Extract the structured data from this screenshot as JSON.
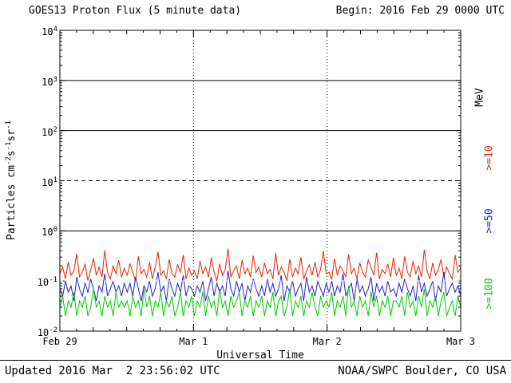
{
  "header": {
    "title": "GOES13 Proton Flux (5 minute data)",
    "begin": "Begin: 2016 Feb 29 0000 UTC"
  },
  "footer": {
    "updated": "Updated 2016 Mar  2 23:56:02 UTC",
    "source": "NOAA/SWPC Boulder, CO USA"
  },
  "right_labels": {
    "unit": "MeV",
    "series": [
      {
        "label": ">=10",
        "color": "#ED2200"
      },
      {
        "label": ">=50",
        "color": "#2222CC"
      },
      {
        "label": ">=100",
        "color": "#00CC00"
      }
    ]
  },
  "chart_data": {
    "type": "line",
    "title": "GOES13 Proton Flux (5 minute data)",
    "xlabel": "Universal Time",
    "ylabel": "Particles cm-2s-1sr-1",
    "ylabel_parts": [
      {
        "text": "Particles cm"
      },
      {
        "sup": "-2"
      },
      {
        "text": "s"
      },
      {
        "sup": "-1"
      },
      {
        "text": "sr"
      },
      {
        "sup": "-1"
      }
    ],
    "y_scale": "log",
    "ylim": [
      0.01,
      10000
    ],
    "y_ticks": [
      {
        "base": "10",
        "exp": "4"
      },
      {
        "base": "10",
        "exp": "3"
      },
      {
        "base": "10",
        "exp": "2"
      },
      {
        "base": "10",
        "exp": "1"
      },
      {
        "base": "10",
        "exp": "0"
      },
      {
        "base": "10",
        "exp": "-1"
      },
      {
        "base": "10",
        "exp": "-2"
      }
    ],
    "x_start": "2016 Feb 29 0000 UTC",
    "x_days": 3,
    "x_tick_labels": [
      "Feb 29",
      "Mar 1",
      "Mar 2",
      "Mar 3"
    ],
    "sample_interval_minutes": 30,
    "gridlines": {
      "h_solid": [
        1000,
        100,
        1
      ],
      "h_dashed": [
        10
      ],
      "h_white_dashed": [
        0.1
      ],
      "v_dotted_at_day_boundaries": true
    },
    "series": [
      {
        "name": ">=10 MeV",
        "color": "#ED2200",
        "values": [
          0.14,
          0.19,
          0.11,
          0.24,
          0.13,
          0.16,
          0.35,
          0.12,
          0.15,
          0.22,
          0.1,
          0.17,
          0.28,
          0.13,
          0.19,
          0.12,
          0.41,
          0.15,
          0.11,
          0.2,
          0.14,
          0.26,
          0.12,
          0.18,
          0.13,
          0.22,
          0.15,
          0.1,
          0.31,
          0.14,
          0.17,
          0.12,
          0.24,
          0.11,
          0.19,
          0.38,
          0.13,
          0.16,
          0.11,
          0.27,
          0.14,
          0.12,
          0.21,
          0.15,
          0.33,
          0.11,
          0.18,
          0.13,
          0.16,
          0.11,
          0.25,
          0.14,
          0.19,
          0.12,
          0.29,
          0.15,
          0.1,
          0.22,
          0.13,
          0.17,
          0.44,
          0.12,
          0.16,
          0.2,
          0.11,
          0.26,
          0.14,
          0.18,
          0.12,
          0.32,
          0.15,
          0.19,
          0.12,
          0.23,
          0.14,
          0.17,
          0.11,
          0.36,
          0.13,
          0.19,
          0.15,
          0.1,
          0.27,
          0.12,
          0.18,
          0.14,
          0.3,
          0.11,
          0.16,
          0.21,
          0.13,
          0.24,
          0.12,
          0.17,
          0.4,
          0.14,
          0.15,
          0.11,
          0.28,
          0.13,
          0.2,
          0.16,
          0.12,
          0.34,
          0.14,
          0.18,
          0.11,
          0.23,
          0.15,
          0.12,
          0.26,
          0.19,
          0.13,
          0.37,
          0.11,
          0.17,
          0.14,
          0.22,
          0.12,
          0.29,
          0.13,
          0.18,
          0.11,
          0.31,
          0.15,
          0.12,
          0.25,
          0.14,
          0.2,
          0.12,
          0.42,
          0.16,
          0.11,
          0.23,
          0.13,
          0.17,
          0.27,
          0.12,
          0.19,
          0.14,
          0.11,
          0.33,
          0.15,
          0.18
        ]
      },
      {
        "name": ">=50 MeV",
        "color": "#2222CC",
        "values": [
          0.07,
          0.05,
          0.1,
          0.06,
          0.08,
          0.04,
          0.12,
          0.07,
          0.05,
          0.09,
          0.06,
          0.11,
          0.07,
          0.04,
          0.08,
          0.06,
          0.14,
          0.05,
          0.07,
          0.1,
          0.06,
          0.08,
          0.05,
          0.09,
          0.06,
          0.09,
          0.05,
          0.12,
          0.07,
          0.04,
          0.08,
          0.06,
          0.1,
          0.05,
          0.07,
          0.15,
          0.06,
          0.08,
          0.04,
          0.11,
          0.07,
          0.05,
          0.09,
          0.06,
          0.13,
          0.05,
          0.08,
          0.07,
          0.05,
          0.08,
          0.06,
          0.1,
          0.04,
          0.07,
          0.12,
          0.05,
          0.09,
          0.06,
          0.08,
          0.05,
          0.16,
          0.07,
          0.05,
          0.1,
          0.06,
          0.09,
          0.04,
          0.08,
          0.06,
          0.11,
          0.07,
          0.05,
          0.08,
          0.05,
          0.11,
          0.06,
          0.09,
          0.05,
          0.07,
          0.13,
          0.04,
          0.08,
          0.06,
          0.1,
          0.05,
          0.07,
          0.09,
          0.04,
          0.12,
          0.06,
          0.08,
          0.05,
          0.1,
          0.07,
          0.05,
          0.09,
          0.06,
          0.1,
          0.05,
          0.08,
          0.06,
          0.14,
          0.05,
          0.07,
          0.09,
          0.04,
          0.11,
          0.06,
          0.08,
          0.05,
          0.07,
          0.12,
          0.04,
          0.09,
          0.06,
          0.08,
          0.05,
          0.1,
          0.06,
          0.07,
          0.05,
          0.09,
          0.06,
          0.11,
          0.07,
          0.05,
          0.08,
          0.04,
          0.13,
          0.06,
          0.09,
          0.05,
          0.07,
          0.1,
          0.04,
          0.08,
          0.06,
          0.15,
          0.05,
          0.07,
          0.09,
          0.06,
          0.08,
          0.05
        ]
      },
      {
        "name": ">=100 MeV",
        "color": "#00CC00",
        "values": [
          0.03,
          0.05,
          0.02,
          0.04,
          0.03,
          0.06,
          0.02,
          0.04,
          0.03,
          0.05,
          0.02,
          0.03,
          0.07,
          0.03,
          0.04,
          0.02,
          0.05,
          0.03,
          0.04,
          0.02,
          0.06,
          0.03,
          0.04,
          0.03,
          0.04,
          0.02,
          0.05,
          0.03,
          0.04,
          0.02,
          0.07,
          0.03,
          0.05,
          0.02,
          0.04,
          0.03,
          0.06,
          0.02,
          0.04,
          0.03,
          0.05,
          0.02,
          0.03,
          0.06,
          0.02,
          0.04,
          0.03,
          0.05,
          0.02,
          0.04,
          0.03,
          0.06,
          0.02,
          0.05,
          0.03,
          0.04,
          0.02,
          0.07,
          0.03,
          0.04,
          0.02,
          0.05,
          0.03,
          0.04,
          0.06,
          0.02,
          0.04,
          0.03,
          0.05,
          0.02,
          0.04,
          0.03,
          0.05,
          0.02,
          0.04,
          0.03,
          0.06,
          0.02,
          0.04,
          0.05,
          0.02,
          0.03,
          0.07,
          0.02,
          0.04,
          0.03,
          0.05,
          0.02,
          0.04,
          0.03,
          0.06,
          0.03,
          0.02,
          0.05,
          0.03,
          0.04,
          0.03,
          0.06,
          0.02,
          0.04,
          0.03,
          0.05,
          0.02,
          0.08,
          0.03,
          0.04,
          0.02,
          0.05,
          0.03,
          0.04,
          0.02,
          0.06,
          0.03,
          0.05,
          0.02,
          0.04,
          0.03,
          0.05,
          0.02,
          0.04,
          0.04,
          0.03,
          0.05,
          0.02,
          0.06,
          0.03,
          0.04,
          0.02,
          0.05,
          0.03,
          0.07,
          0.02,
          0.04,
          0.03,
          0.05,
          0.02,
          0.04,
          0.06,
          0.02,
          0.03,
          0.04,
          0.02,
          0.05,
          0.03
        ]
      }
    ]
  }
}
